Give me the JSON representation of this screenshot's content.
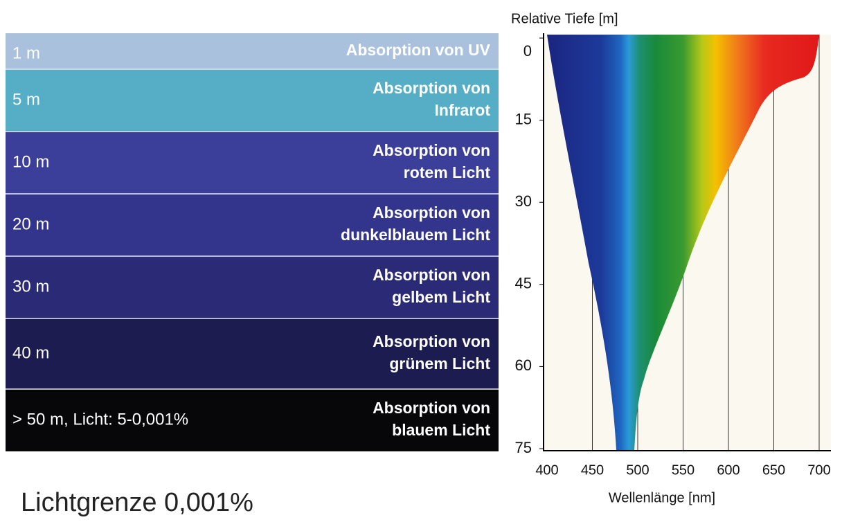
{
  "panel": {
    "rows": [
      {
        "depth": "1 m",
        "absorption": [
          "Absorption von UV"
        ]
      },
      {
        "depth": "5 m",
        "absorption": [
          "Absorption von",
          "Infrarot"
        ]
      },
      {
        "depth": "10 m",
        "absorption": [
          "Absorption von",
          "rotem Licht"
        ]
      },
      {
        "depth": "20 m",
        "absorption": [
          "Absorption von",
          "dunkelblauem Licht"
        ]
      },
      {
        "depth": "30 m",
        "absorption": [
          "Absorption von",
          "gelbem Licht"
        ]
      },
      {
        "depth": "40 m",
        "absorption": [
          "Absorption von",
          "grünem Licht"
        ]
      },
      {
        "depth": "> 50 m, Licht: 5-0,001%",
        "absorption": [
          "Absorption von",
          "blauem Licht"
        ]
      }
    ]
  },
  "figure": {
    "y_axis_title": "Relative Tiefe [m]",
    "x_axis_title": "Wellenlänge [nm]",
    "xlim": [
      400,
      700
    ],
    "ylim": [
      0,
      75
    ],
    "xticks": [
      400,
      450,
      500,
      550,
      600,
      650,
      700
    ],
    "yticks": [
      0,
      15,
      30,
      45,
      60,
      75
    ]
  },
  "footer": "Lichtgrenze 0,001%"
}
